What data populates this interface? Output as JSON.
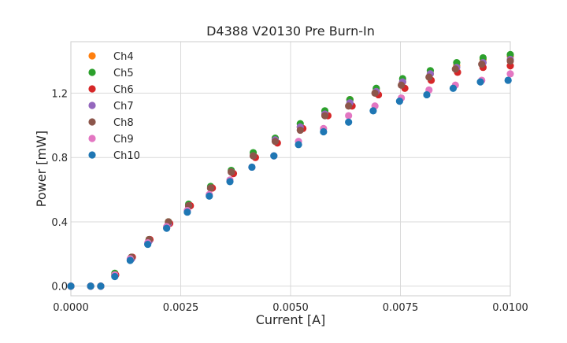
{
  "chart_data": {
    "type": "scatter",
    "title": "D4388 V20130 Pre Burn-In",
    "xlabel": "Current [A]",
    "ylabel": "Power [mW]",
    "xlim": [
      0.0,
      0.01
    ],
    "ylim": [
      -0.06,
      1.52
    ],
    "x_ticks": [
      {
        "value": 0.0,
        "label": "0.0000"
      },
      {
        "value": 0.0025,
        "label": "0.0025"
      },
      {
        "value": 0.005,
        "label": "0.0050"
      },
      {
        "value": 0.0075,
        "label": "0.0075"
      },
      {
        "value": 0.01,
        "label": "0.0100"
      }
    ],
    "y_ticks": [
      {
        "value": 0.0,
        "label": "0.0"
      },
      {
        "value": 0.4,
        "label": "0.4"
      },
      {
        "value": 0.8,
        "label": "0.8"
      },
      {
        "value": 1.2,
        "label": "1.2"
      }
    ],
    "grid": true,
    "legend_position": "top-left",
    "series": [
      {
        "name": "Ch4",
        "color": "#ff7f0e",
        "x": [
          0.0,
          0.00045,
          0.00068,
          0.001,
          0.00138,
          0.00178,
          0.00222,
          0.00268,
          0.00318,
          0.00365,
          0.00415,
          0.00465,
          0.00522,
          0.00578,
          0.00635,
          0.00695,
          0.00755,
          0.00818,
          0.00878,
          0.00938,
          0.01
        ],
        "y": [
          0.0,
          0.0,
          0.0,
          0.07,
          0.18,
          0.29,
          0.4,
          0.5,
          0.61,
          0.71,
          0.81,
          0.91,
          0.99,
          1.07,
          1.16,
          1.22,
          1.27,
          1.32,
          1.37,
          1.41,
          1.43
        ]
      },
      {
        "name": "Ch5",
        "color": "#2ca02c",
        "x": [
          0.0,
          0.00045,
          0.00068,
          0.001,
          0.00138,
          0.00178,
          0.00222,
          0.00268,
          0.00318,
          0.00365,
          0.00415,
          0.00465,
          0.00522,
          0.00578,
          0.00635,
          0.00695,
          0.00755,
          0.00818,
          0.00878,
          0.00938,
          0.01
        ],
        "y": [
          0.0,
          0.0,
          0.0,
          0.08,
          0.18,
          0.29,
          0.4,
          0.51,
          0.62,
          0.72,
          0.83,
          0.92,
          1.01,
          1.09,
          1.16,
          1.23,
          1.29,
          1.34,
          1.39,
          1.42,
          1.44
        ]
      },
      {
        "name": "Ch6",
        "color": "#d62728",
        "x": [
          0.0,
          0.00045,
          0.00068,
          0.00102,
          0.0014,
          0.0018,
          0.00225,
          0.00272,
          0.00322,
          0.0037,
          0.0042,
          0.0047,
          0.00528,
          0.00585,
          0.0064,
          0.007,
          0.0076,
          0.0082,
          0.0088,
          0.00938,
          0.01
        ],
        "y": [
          0.0,
          0.0,
          0.0,
          0.07,
          0.18,
          0.29,
          0.39,
          0.5,
          0.61,
          0.7,
          0.8,
          0.89,
          0.98,
          1.06,
          1.12,
          1.19,
          1.23,
          1.28,
          1.33,
          1.36,
          1.37
        ]
      },
      {
        "name": "Ch7",
        "color": "#9467bd",
        "x": [
          0.0,
          0.00045,
          0.00068,
          0.001,
          0.00138,
          0.00178,
          0.00222,
          0.00268,
          0.00318,
          0.00365,
          0.00415,
          0.00465,
          0.00522,
          0.00578,
          0.00635,
          0.00695,
          0.00755,
          0.00818,
          0.00878,
          0.00938,
          0.01
        ],
        "y": [
          0.0,
          0.0,
          0.0,
          0.07,
          0.17,
          0.28,
          0.39,
          0.5,
          0.61,
          0.71,
          0.81,
          0.91,
          0.99,
          1.07,
          1.14,
          1.21,
          1.27,
          1.32,
          1.36,
          1.39,
          1.41
        ]
      },
      {
        "name": "Ch8",
        "color": "#8c564b",
        "x": [
          0.0,
          0.00045,
          0.00068,
          0.001,
          0.00138,
          0.00178,
          0.00222,
          0.00268,
          0.00318,
          0.00365,
          0.00415,
          0.00465,
          0.00522,
          0.00578,
          0.00632,
          0.00692,
          0.00752,
          0.00815,
          0.00875,
          0.00935,
          0.01
        ],
        "y": [
          0.0,
          0.0,
          0.0,
          0.07,
          0.18,
          0.29,
          0.4,
          0.5,
          0.61,
          0.71,
          0.81,
          0.9,
          0.97,
          1.06,
          1.12,
          1.2,
          1.25,
          1.3,
          1.35,
          1.38,
          1.4
        ]
      },
      {
        "name": "Ch9",
        "color": "#e377c2",
        "x": [
          0.0,
          0.00045,
          0.00068,
          0.001,
          0.00135,
          0.00175,
          0.00218,
          0.00265,
          0.00315,
          0.00362,
          0.00412,
          0.00462,
          0.00518,
          0.00575,
          0.00632,
          0.00692,
          0.00752,
          0.00815,
          0.00875,
          0.00935,
          0.01
        ],
        "y": [
          0.0,
          0.0,
          0.0,
          0.07,
          0.17,
          0.27,
          0.37,
          0.47,
          0.57,
          0.66,
          0.74,
          0.81,
          0.9,
          0.98,
          1.06,
          1.12,
          1.17,
          1.22,
          1.25,
          1.28,
          1.32
        ]
      },
      {
        "name": "Ch10",
        "color": "#1f77b4",
        "x": [
          0.0,
          0.00045,
          0.00068,
          0.001,
          0.00135,
          0.00175,
          0.00218,
          0.00265,
          0.00315,
          0.00362,
          0.00412,
          0.00462,
          0.00518,
          0.00575,
          0.00632,
          0.00688,
          0.00748,
          0.0081,
          0.0087,
          0.00932,
          0.00995
        ],
        "y": [
          0.0,
          0.0,
          0.0,
          0.06,
          0.16,
          0.26,
          0.36,
          0.46,
          0.56,
          0.65,
          0.74,
          0.81,
          0.88,
          0.96,
          1.02,
          1.09,
          1.15,
          1.19,
          1.23,
          1.27,
          1.28
        ]
      }
    ]
  }
}
